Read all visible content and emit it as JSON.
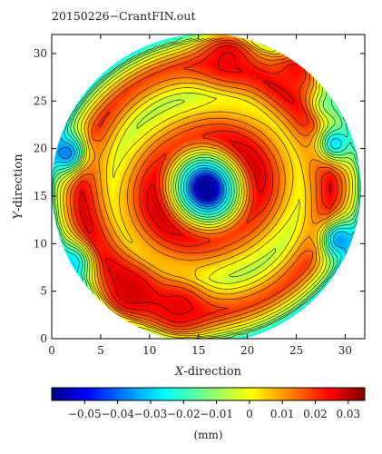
{
  "chart_data": {
    "type": "heatmap",
    "subtype": "filled-contour",
    "title": "20150226−CrantFIN.out",
    "xlabel": {
      "var": "X",
      "rest": "-direction"
    },
    "ylabel": {
      "var": "Y",
      "rest": "-direction"
    },
    "xlim": [
      0,
      32
    ],
    "ylim": [
      0,
      32
    ],
    "xticks": [
      "0",
      "5",
      "10",
      "15",
      "20",
      "25",
      "30"
    ],
    "yticks": [
      "0",
      "5",
      "10",
      "15",
      "20",
      "25",
      "30"
    ],
    "xtick_values": [
      0,
      5,
      10,
      15,
      20,
      25,
      30
    ],
    "ytick_values": [
      0,
      5,
      10,
      15,
      20,
      25,
      30
    ],
    "colorbar": {
      "range": [
        -0.06,
        0.035
      ],
      "ticks": [
        -0.05,
        -0.04,
        -0.03,
        -0.02,
        -0.01,
        0,
        0.01,
        0.02,
        0.03
      ],
      "tick_labels": [
        "−0.05",
        "−0.04",
        "−0.03",
        "−0.02",
        "−0.01",
        "0",
        "0.01",
        "0.02",
        "0.03"
      ],
      "label": "(mm)",
      "colormap": "jet"
    },
    "field": {
      "center": [
        15.8,
        15.8
      ],
      "radius": 15.8,
      "radial_profile": [
        {
          "r": 0.0,
          "value": -0.058
        },
        {
          "r": 1.0,
          "value": -0.055
        },
        {
          "r": 1.5,
          "value": -0.042
        },
        {
          "r": 2.2,
          "value": -0.028
        },
        {
          "r": 3.0,
          "value": -0.014
        },
        {
          "r": 3.8,
          "value": 0.002
        },
        {
          "r": 4.6,
          "value": 0.016
        },
        {
          "r": 5.4,
          "value": 0.024
        },
        {
          "r": 6.4,
          "value": 0.02
        },
        {
          "r": 7.4,
          "value": 0.012
        },
        {
          "r": 8.4,
          "value": 0.004
        },
        {
          "r": 9.6,
          "value": -0.002
        },
        {
          "r": 10.8,
          "value": 0.008
        },
        {
          "r": 11.8,
          "value": 0.018
        },
        {
          "r": 12.8,
          "value": 0.024
        },
        {
          "r": 13.8,
          "value": 0.014
        },
        {
          "r": 14.8,
          "value": 0.0
        },
        {
          "r": 15.5,
          "value": -0.012
        },
        {
          "r": 15.8,
          "value": -0.024
        }
      ],
      "low_spots": [
        {
          "x": 1.5,
          "y": 19.5,
          "value": -0.038
        },
        {
          "x": 2.0,
          "y": 8.0,
          "value": -0.03
        },
        {
          "x": 29.5,
          "y": 10.5,
          "value": -0.035
        },
        {
          "x": 29.0,
          "y": 20.5,
          "value": -0.028
        },
        {
          "x": 28.5,
          "y": 25.0,
          "value": -0.018
        }
      ],
      "high_spots": [
        {
          "x": 8.0,
          "y": 5.0,
          "value": 0.028
        },
        {
          "x": 13.0,
          "y": 3.5,
          "value": 0.026
        },
        {
          "x": 18.0,
          "y": 29.5,
          "value": 0.026
        },
        {
          "x": 25.0,
          "y": 28.0,
          "value": 0.024
        }
      ]
    }
  }
}
